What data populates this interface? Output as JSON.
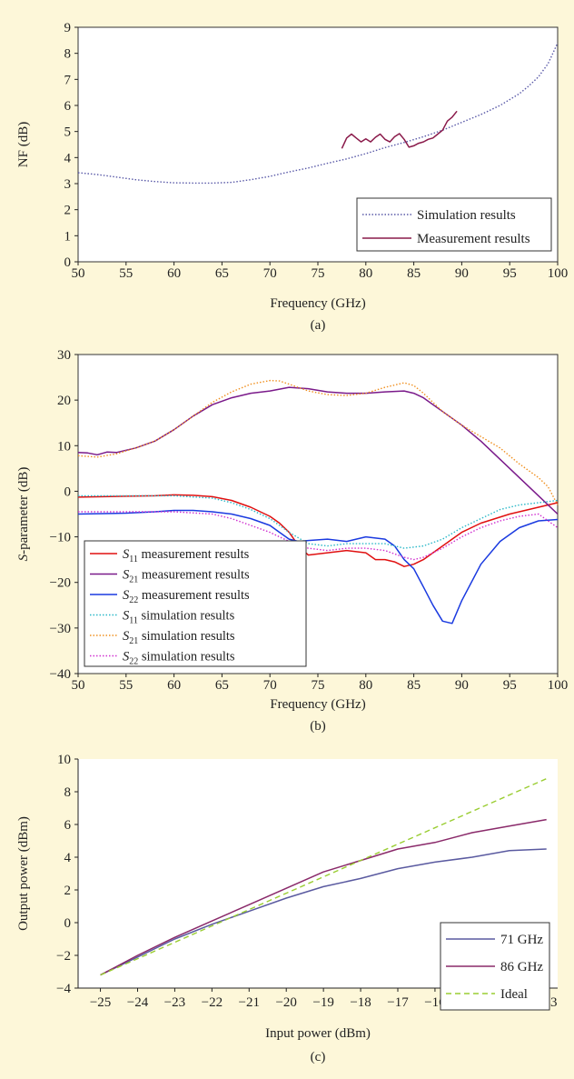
{
  "panels": [
    {
      "id": "a",
      "caption": "(a)",
      "chart_data": {
        "type": "line",
        "xlabel": "Frequency (GHz)",
        "ylabel": "NF (dB)",
        "xlim": [
          50,
          100
        ],
        "ylim": [
          0,
          9
        ],
        "xticks": [
          "50",
          "55",
          "60",
          "65",
          "70",
          "75",
          "80",
          "85",
          "90",
          "95",
          "100"
        ],
        "yticks": [
          "0",
          "1",
          "2",
          "3",
          "4",
          "5",
          "6",
          "7",
          "8",
          "9"
        ],
        "grid": false,
        "legend_position": "bottom-right",
        "series": [
          {
            "name": "Simulation results",
            "color": "#5a5aa8",
            "style": "dotted",
            "x": [
              50,
              52,
              54,
              56,
              58,
              60,
              62,
              64,
              66,
              68,
              70,
              72,
              74,
              76,
              78,
              80,
              82,
              84,
              86,
              88,
              90,
              92,
              94,
              96,
              97,
              98,
              99,
              99.5,
              100
            ],
            "y": [
              3.42,
              3.35,
              3.25,
              3.15,
              3.08,
              3.03,
              3.02,
              3.02,
              3.05,
              3.15,
              3.28,
              3.45,
              3.6,
              3.78,
              3.95,
              4.15,
              4.38,
              4.58,
              4.8,
              5.05,
              5.35,
              5.65,
              6.0,
              6.45,
              6.75,
              7.1,
              7.6,
              8.0,
              8.4
            ]
          },
          {
            "name": "Measurement results",
            "color": "#8a1a4a",
            "style": "solid",
            "x": [
              77.5,
              78,
              78.5,
              79,
              79.5,
              80,
              80.5,
              81,
              81.5,
              82,
              82.5,
              83,
              83.5,
              84,
              84.5,
              85,
              85.5,
              86,
              86.5,
              87,
              87.5,
              88,
              88.5,
              89,
              89.5
            ],
            "y": [
              4.35,
              4.75,
              4.9,
              4.75,
              4.6,
              4.72,
              4.6,
              4.78,
              4.9,
              4.7,
              4.6,
              4.8,
              4.92,
              4.7,
              4.4,
              4.45,
              4.55,
              4.6,
              4.7,
              4.75,
              4.9,
              5.05,
              5.4,
              5.55,
              5.78
            ]
          }
        ]
      }
    },
    {
      "id": "b",
      "caption": "(b)",
      "chart_data": {
        "type": "line",
        "xlabel": "Frequency (GHz)",
        "ylabel_italic": "S",
        "ylabel_rest": "-parameter (dB)",
        "xlim": [
          50,
          100
        ],
        "ylim": [
          -40,
          30
        ],
        "xticks": [
          "50",
          "55",
          "60",
          "65",
          "70",
          "75",
          "80",
          "85",
          "90",
          "95",
          "100"
        ],
        "yticks": [
          "−40",
          "−30",
          "−20",
          "−10",
          "0",
          "10",
          "20",
          "30"
        ],
        "ytick_values": [
          -40,
          -30,
          -20,
          -10,
          0,
          10,
          20,
          30
        ],
        "grid": false,
        "legend_position": "bottom-left",
        "series": [
          {
            "name_s": "S",
            "name_sub": "11",
            "name_rest": " measurement results",
            "color": "#e01010",
            "style": "solid",
            "x": [
              50,
              55,
              58,
              60,
              62,
              64,
              66,
              68,
              69,
              70,
              71,
              72,
              73,
              74,
              76,
              78,
              80,
              81,
              82,
              83,
              84,
              85,
              86,
              87,
              88,
              89,
              90,
              92,
              95,
              98,
              100
            ],
            "y": [
              -1.3,
              -1.1,
              -1.0,
              -0.8,
              -0.9,
              -1.2,
              -2.0,
              -3.5,
              -4.5,
              -5.5,
              -7.0,
              -9.0,
              -12.0,
              -14.0,
              -13.5,
              -13.0,
              -13.5,
              -15.0,
              -15.0,
              -15.5,
              -16.5,
              -16.0,
              -15.0,
              -13.5,
              -12.0,
              -10.5,
              -9.0,
              -7.0,
              -5.0,
              -3.5,
              -2.5
            ]
          },
          {
            "name_s": "S",
            "name_sub": "21",
            "name_rest": " measurement results",
            "color": "#7a1a8a",
            "style": "solid",
            "x": [
              50,
              51,
              52,
              53,
              54,
              55,
              56,
              58,
              60,
              62,
              64,
              66,
              68,
              70,
              72,
              74,
              76,
              78,
              80,
              82,
              84,
              85,
              86,
              88,
              90,
              92,
              94,
              96,
              98,
              100
            ],
            "y": [
              8.5,
              8.4,
              8.0,
              8.6,
              8.5,
              9.0,
              9.5,
              11.0,
              13.5,
              16.5,
              19.0,
              20.5,
              21.5,
              22.0,
              22.8,
              22.5,
              21.8,
              21.5,
              21.5,
              21.8,
              22.0,
              21.5,
              20.5,
              17.5,
              14.5,
              11.0,
              7.0,
              3.0,
              -1.0,
              -5.0
            ]
          },
          {
            "name_s": "S",
            "name_sub": "22",
            "name_rest": " measurement results",
            "color": "#1a3ae0",
            "style": "solid",
            "x": [
              50,
              55,
              58,
              60,
              62,
              64,
              66,
              68,
              70,
              71,
              72,
              73,
              74,
              76,
              78,
              80,
              82,
              83,
              84,
              85,
              86,
              87,
              88,
              89,
              90,
              92,
              94,
              96,
              98,
              100
            ],
            "y": [
              -5.0,
              -4.8,
              -4.5,
              -4.2,
              -4.2,
              -4.5,
              -5.0,
              -6.0,
              -7.5,
              -9.0,
              -10.5,
              -11.0,
              -10.8,
              -10.5,
              -11.0,
              -10.0,
              -10.5,
              -12.0,
              -15.0,
              -17.0,
              -21.0,
              -25.0,
              -28.5,
              -29.0,
              -24.0,
              -16.0,
              -11.0,
              -8.0,
              -6.5,
              -6.2
            ]
          },
          {
            "name_s": "S",
            "name_sub": "11",
            "name_rest": " simulation results",
            "color": "#2ab8c8",
            "style": "dotted",
            "x": [
              50,
              55,
              60,
              64,
              66,
              68,
              70,
              72,
              74,
              76,
              78,
              80,
              82,
              84,
              86,
              88,
              90,
              92,
              94,
              96,
              98,
              100
            ],
            "y": [
              -1.0,
              -1.0,
              -1.0,
              -1.5,
              -2.5,
              -4.0,
              -6.0,
              -9.0,
              -11.5,
              -12.0,
              -11.5,
              -11.5,
              -11.5,
              -12.5,
              -12.0,
              -10.5,
              -8.0,
              -6.0,
              -4.0,
              -3.0,
              -2.5,
              -2.0
            ]
          },
          {
            "name_s": "S",
            "name_sub": "21",
            "name_rest": " simulation results",
            "color": "#f09020",
            "style": "dotted",
            "x": [
              50,
              52,
              54,
              56,
              58,
              60,
              62,
              64,
              66,
              68,
              70,
              71,
              72,
              74,
              76,
              78,
              80,
              82,
              84,
              85,
              86,
              88,
              90,
              92,
              94,
              96,
              98,
              99,
              100
            ],
            "y": [
              7.8,
              7.5,
              8.2,
              9.5,
              11.0,
              13.5,
              16.5,
              19.5,
              21.8,
              23.5,
              24.3,
              24.2,
              23.5,
              22.0,
              21.2,
              21.0,
              21.5,
              22.8,
              23.8,
              23.2,
              21.5,
              17.5,
              14.5,
              12.0,
              9.5,
              6.0,
              3.0,
              1.0,
              -3.0
            ]
          },
          {
            "name_s": "S",
            "name_sub": "22",
            "name_rest": " simulation results",
            "color": "#d030d0",
            "style": "dotted",
            "x": [
              50,
              55,
              60,
              64,
              66,
              68,
              70,
              72,
              74,
              76,
              78,
              80,
              82,
              84,
              85,
              86,
              88,
              90,
              92,
              94,
              96,
              98,
              100
            ],
            "y": [
              -4.5,
              -4.5,
              -4.5,
              -5.0,
              -6.0,
              -7.5,
              -9.0,
              -11.0,
              -12.5,
              -13.0,
              -12.5,
              -12.5,
              -13.0,
              -14.5,
              -15.0,
              -14.5,
              -12.5,
              -10.0,
              -8.0,
              -6.5,
              -5.5,
              -5.0,
              -8.0
            ]
          }
        ]
      }
    },
    {
      "id": "c",
      "caption": "(c)",
      "chart_data": {
        "type": "line",
        "xlabel": "Input power (dBm)",
        "ylabel": "Output power (dBm)",
        "xlim": [
          -25.6,
          -12.7
        ],
        "ylim": [
          -4,
          10
        ],
        "xticks": [
          "−25",
          "−24",
          "−23",
          "−22",
          "−21",
          "−20",
          "−19",
          "−18",
          "−17",
          "−16",
          "−15",
          "−14",
          "−13"
        ],
        "xtick_values": [
          -25,
          -24,
          -23,
          -22,
          -21,
          -20,
          -19,
          -18,
          -17,
          -16,
          -15,
          -14,
          -13
        ],
        "yticks": [
          "−4",
          "−2",
          "0",
          "2",
          "4",
          "6",
          "8",
          "10"
        ],
        "ytick_values": [
          -4,
          -2,
          0,
          2,
          4,
          6,
          8,
          10
        ],
        "grid": false,
        "legend_position": "bottom-right",
        "series": [
          {
            "name": "71 GHz",
            "color": "#5a5aa0",
            "style": "solid",
            "x": [
              -25,
              -24,
              -23,
              -22,
              -21,
              -20,
              -19,
              -18,
              -17,
              -16,
              -15,
              -14,
              -13
            ],
            "y": [
              -3.2,
              -2.1,
              -1.0,
              -0.1,
              0.7,
              1.5,
              2.2,
              2.7,
              3.3,
              3.7,
              4.0,
              4.4,
              4.5
            ]
          },
          {
            "name": "86 GHz",
            "color": "#8a2a6a",
            "style": "solid",
            "x": [
              -25,
              -24,
              -23,
              -22,
              -21,
              -20,
              -19,
              -18,
              -17,
              -16,
              -15,
              -14,
              -13
            ],
            "y": [
              -3.2,
              -2.0,
              -0.9,
              0.1,
              1.1,
              2.1,
              3.1,
              3.8,
              4.5,
              4.9,
              5.5,
              5.9,
              6.3
            ]
          },
          {
            "name": "Ideal",
            "color": "#9acd32",
            "style": "dashed",
            "x": [
              -25,
              -13
            ],
            "y": [
              -3.2,
              8.8
            ]
          }
        ]
      }
    }
  ]
}
